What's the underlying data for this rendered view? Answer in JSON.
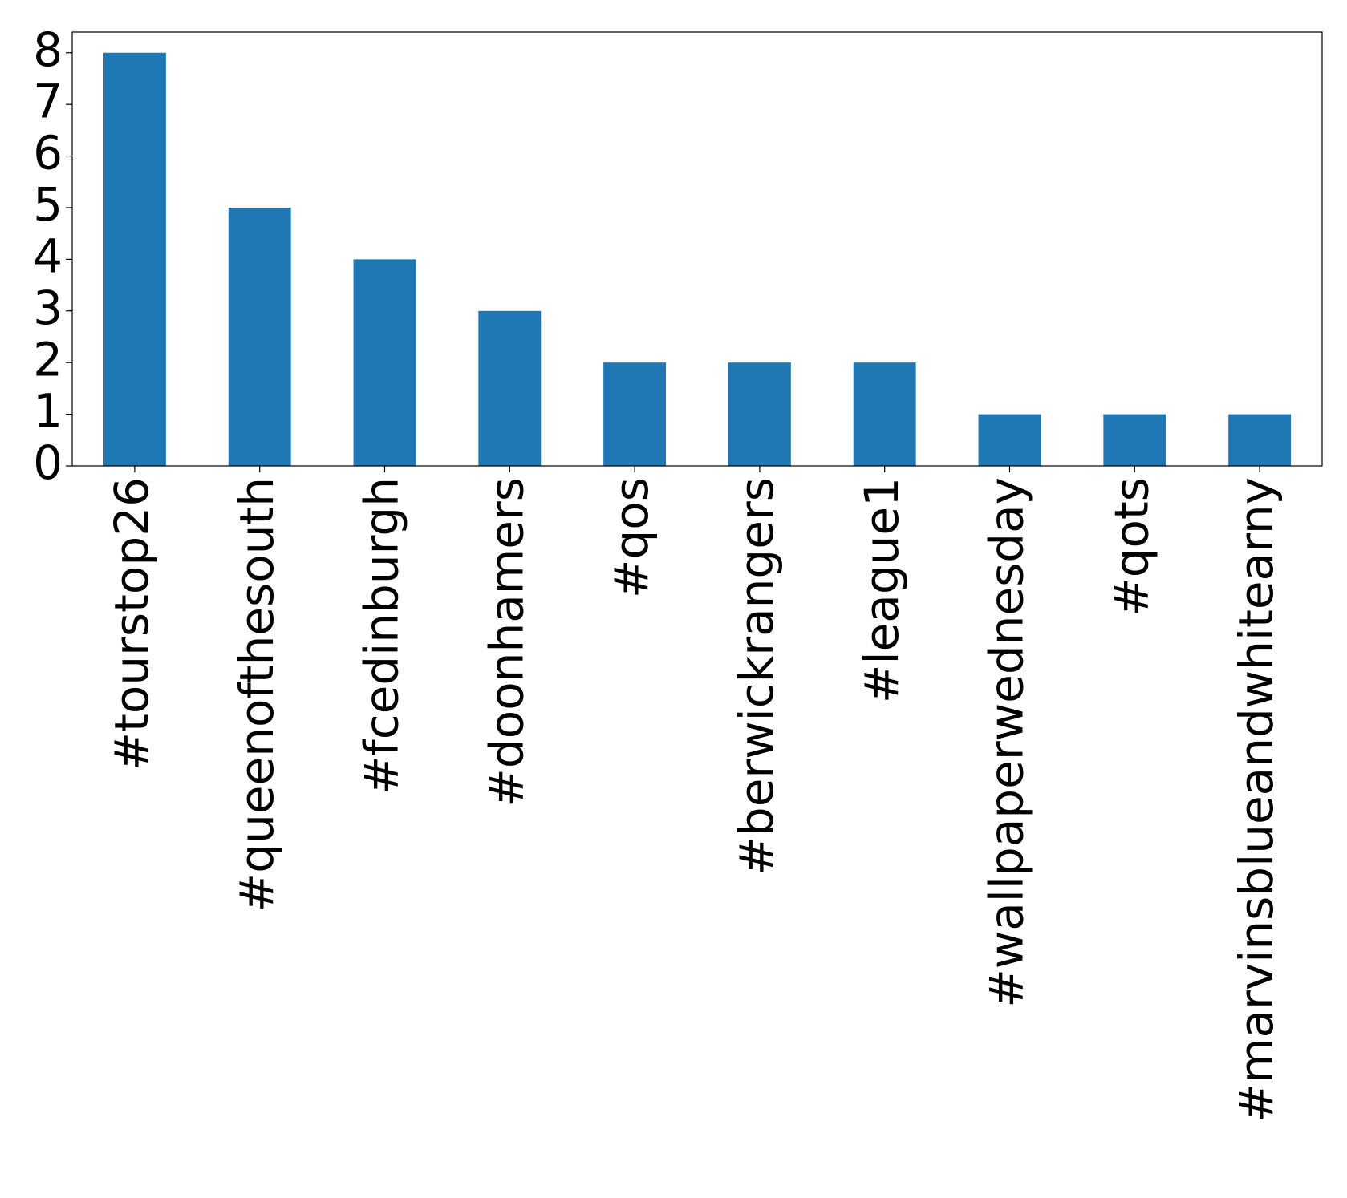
{
  "chart_data": {
    "type": "bar",
    "categories": [
      "#tourstop26",
      "#queenofthesouth",
      "#fcedinburgh",
      "#doonhamers",
      "#qos",
      "#berwickrangers",
      "#league1",
      "#wallpaperwednesday",
      "#qots",
      "#marvinsblueandwhitearny"
    ],
    "values": [
      8,
      5,
      4,
      3,
      2,
      2,
      2,
      1,
      1,
      1
    ],
    "color": "#1f77b4",
    "ylim": [
      0,
      8.4
    ],
    "yticks": [
      0,
      1,
      2,
      3,
      4,
      5,
      6,
      7,
      8
    ],
    "grid": false
  }
}
